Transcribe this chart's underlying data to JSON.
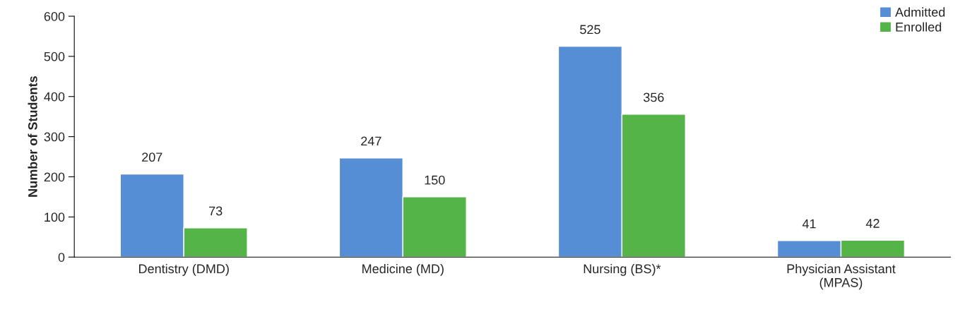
{
  "chart_data": {
    "type": "bar",
    "ylabel": "Number of Students",
    "categories": [
      "Dentistry (DMD)",
      "Medicine (MD)",
      "Nursing (BS)*",
      "Physician Assistant\n(MPAS)"
    ],
    "series": [
      {
        "name": "Admitted",
        "color": "#558ed5",
        "values": [
          207,
          247,
          525,
          41
        ]
      },
      {
        "name": "Enrolled",
        "color": "#55b447",
        "values": [
          73,
          150,
          356,
          42
        ]
      }
    ],
    "ylim": [
      0,
      600
    ],
    "yticks": [
      0,
      100,
      200,
      300,
      400,
      500,
      600
    ],
    "data_labels": true,
    "grid": false,
    "legend": "top right"
  }
}
